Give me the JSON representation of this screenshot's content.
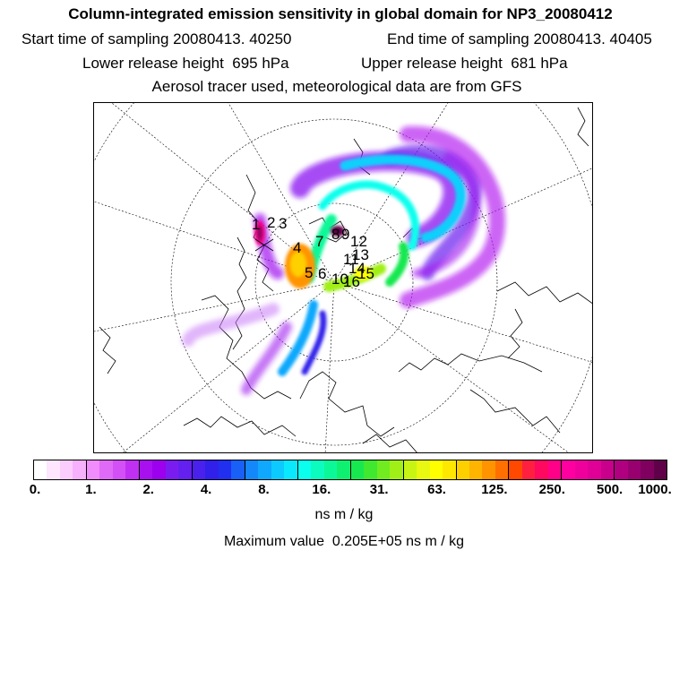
{
  "header": {
    "title": "Column-integrated emission sensitivity in global domain for NP3_20080412",
    "start_sampling": "Start time of sampling 20080413. 40250",
    "end_sampling": "End time of sampling 20080413. 40405",
    "lower_release": "Lower release height  695 hPa",
    "upper_release": "Upper release height  681 hPa",
    "tracer_note": "Aerosol tracer used, meteorological data are from GFS"
  },
  "colorbar": {
    "colors": [
      "#ffffff",
      "#fde6fe",
      "#fbcdfd",
      "#f7b0fc",
      "#f08cfb",
      "#e06af8",
      "#d350f6",
      "#c030f3",
      "#a810f0",
      "#9c00ee",
      "#7a1cf0",
      "#6420ee",
      "#4a20ec",
      "#3020ea",
      "#2030ee",
      "#1860f6",
      "#1488fa",
      "#10a8fc",
      "#0ccafd",
      "#0ae8fe",
      "#0affee",
      "#0cfcc0",
      "#0cf898",
      "#10f070",
      "#18e850",
      "#40e830",
      "#70ec20",
      "#a0f018",
      "#c8f414",
      "#e8f810",
      "#ffff00",
      "#ffe800",
      "#ffd000",
      "#ffb400",
      "#ff9400",
      "#ff7000",
      "#ff4800",
      "#ff2040",
      "#ff0860",
      "#ff0088",
      "#ff00a0",
      "#ef009c",
      "#e00098",
      "#c8008c",
      "#b00080",
      "#980070",
      "#800060",
      "#600048"
    ],
    "tick_labels": [
      "0.",
      "1.",
      "2.",
      "4.",
      "8.",
      "16.",
      "31.",
      "63.",
      "125.",
      "250.",
      "500.",
      "1000."
    ]
  },
  "unit_label": "ns m / kg",
  "max_value_text": "Maximum value  0.205E+05 ns m / kg",
  "map": {
    "release_labels": [
      "1",
      "2",
      "3",
      "4",
      "5",
      "6",
      "7",
      "8",
      "9",
      "10",
      "11",
      "12",
      "13",
      "14",
      "15",
      "16"
    ]
  }
}
